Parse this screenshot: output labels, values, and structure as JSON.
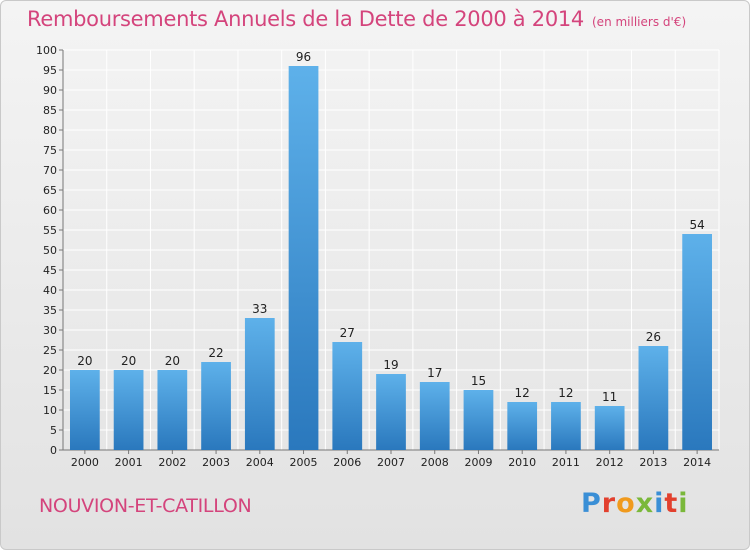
{
  "header": {
    "title": "Remboursements Annuels de la Dette de 2000 à 2014",
    "unit": "(en milliers d'€)"
  },
  "footer": {
    "place": "NOUVION-ET-CATILLON",
    "logo_letters": [
      "P",
      "r",
      "o",
      "x",
      "i",
      "t",
      "i"
    ],
    "logo_colors": [
      "#3a8fd6",
      "#e2402e",
      "#f09a1d",
      "#7ab83a",
      "#3a8fd6",
      "#e2402e",
      "#7ab83a"
    ]
  },
  "colors": {
    "accent": "#d4447c",
    "bar_top": "#5eb1ea",
    "bar_bottom": "#2a78bd",
    "grid": "#ffffff"
  },
  "chart_data": {
    "type": "bar",
    "categories": [
      "2000",
      "2001",
      "2002",
      "2003",
      "2004",
      "2005",
      "2006",
      "2007",
      "2008",
      "2009",
      "2010",
      "2011",
      "2012",
      "2013",
      "2014"
    ],
    "values": [
      20,
      20,
      20,
      22,
      33,
      96,
      27,
      19,
      17,
      15,
      12,
      12,
      11,
      26,
      54
    ],
    "data_labels": [
      "20",
      "20",
      "20",
      "22",
      "33",
      "96",
      "27",
      "19",
      "17",
      "15",
      "12",
      "12",
      "11",
      "26",
      "54"
    ],
    "ylim": [
      0,
      100
    ],
    "yticks": [
      0,
      5,
      10,
      15,
      20,
      25,
      30,
      35,
      40,
      45,
      50,
      55,
      60,
      65,
      70,
      75,
      80,
      85,
      90,
      95,
      100
    ],
    "grid": true,
    "xlabel": "",
    "ylabel": ""
  }
}
